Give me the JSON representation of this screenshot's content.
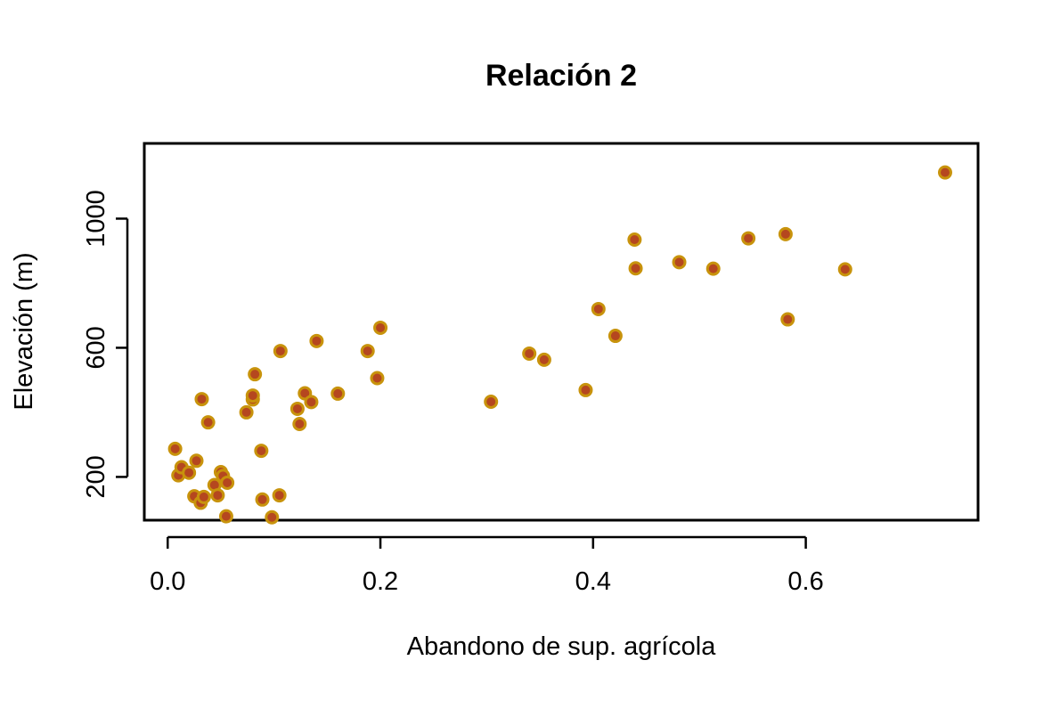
{
  "chart_data": {
    "type": "scatter",
    "title": "Relación 2",
    "xlabel": "Abandono de sup. agrícola",
    "ylabel": "Elevación (m)",
    "xlim": [
      -0.022,
      0.762
    ],
    "ylim": [
      66,
      1233
    ],
    "xticks": [
      0.0,
      0.2,
      0.4,
      0.6
    ],
    "xtick_labels": [
      "0.0",
      "0.2",
      "0.4",
      "0.6"
    ],
    "yticks": [
      200,
      600,
      1000
    ],
    "ytick_labels": [
      "200",
      "600",
      "1000"
    ],
    "grid": false,
    "legend": "none",
    "colors": {
      "point_fill": "#b5471f",
      "point_stroke": "#c8930c"
    },
    "series": [
      {
        "points": [
          [
            0.007,
            287
          ],
          [
            0.01,
            205
          ],
          [
            0.013,
            230
          ],
          [
            0.02,
            213
          ],
          [
            0.025,
            140
          ],
          [
            0.027,
            250
          ],
          [
            0.031,
            120
          ],
          [
            0.032,
            441
          ],
          [
            0.034,
            138
          ],
          [
            0.038,
            369
          ],
          [
            0.044,
            175
          ],
          [
            0.047,
            143
          ],
          [
            0.05,
            215
          ],
          [
            0.052,
            203
          ],
          [
            0.055,
            78
          ],
          [
            0.056,
            182
          ],
          [
            0.074,
            400
          ],
          [
            0.08,
            440
          ],
          [
            0.08,
            452
          ],
          [
            0.082,
            518
          ],
          [
            0.088,
            281
          ],
          [
            0.089,
            130
          ],
          [
            0.098,
            75
          ],
          [
            0.105,
            143
          ],
          [
            0.106,
            590
          ],
          [
            0.122,
            411
          ],
          [
            0.124,
            364
          ],
          [
            0.129,
            459
          ],
          [
            0.135,
            432
          ],
          [
            0.14,
            621
          ],
          [
            0.16,
            458
          ],
          [
            0.188,
            590
          ],
          [
            0.197,
            506
          ],
          [
            0.2,
            662
          ],
          [
            0.304,
            433
          ],
          [
            0.34,
            582
          ],
          [
            0.354,
            563
          ],
          [
            0.393,
            469
          ],
          [
            0.405,
            720
          ],
          [
            0.421,
            637
          ],
          [
            0.439,
            935
          ],
          [
            0.44,
            846
          ],
          [
            0.481,
            865
          ],
          [
            0.513,
            845
          ],
          [
            0.546,
            939
          ],
          [
            0.581,
            952
          ],
          [
            0.583,
            688
          ],
          [
            0.637,
            843
          ],
          [
            0.731,
            1143
          ]
        ]
      }
    ]
  }
}
